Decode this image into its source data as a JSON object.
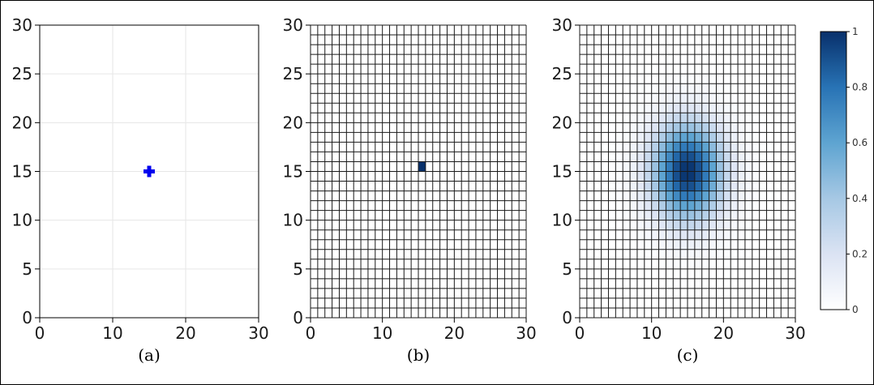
{
  "colors": {
    "marker": "#0000ee",
    "grid_light": "#e6e6e6",
    "grid_dark": "#1a1a1a",
    "cmap_low": "#ffffff",
    "cmap_high": "#08306b"
  },
  "chart_data": [
    {
      "type": "scatter",
      "caption": "(a)",
      "title": "",
      "xlabel": "",
      "ylabel": "",
      "xlim": [
        0,
        30
      ],
      "ylim": [
        0,
        30
      ],
      "x_ticks": [
        "0",
        "10",
        "20",
        "30"
      ],
      "y_ticks": [
        "0",
        "5",
        "10",
        "15",
        "20",
        "25",
        "30"
      ],
      "grid": true,
      "legend": "none",
      "points": [
        {
          "x": 15,
          "y": 15,
          "marker": "plus"
        }
      ]
    },
    {
      "type": "heatmap",
      "caption": "(b)",
      "title": "",
      "xlabel": "",
      "ylabel": "",
      "xlim": [
        0,
        30
      ],
      "ylim": [
        0,
        30
      ],
      "x_ticks": [
        "0",
        "10",
        "20",
        "30"
      ],
      "y_ticks": [
        "0",
        "5",
        "10",
        "15",
        "20",
        "25",
        "30"
      ],
      "grid_cells": [
        30,
        30
      ],
      "grid": true,
      "legend": "none",
      "active_cells": [
        {
          "x": 15,
          "y": 15,
          "value": 1
        }
      ]
    },
    {
      "type": "heatmap",
      "caption": "(c)",
      "title": "",
      "xlabel": "",
      "ylabel": "",
      "xlim": [
        0,
        30
      ],
      "ylim": [
        0,
        30
      ],
      "x_ticks": [
        "0",
        "10",
        "20",
        "30"
      ],
      "y_ticks": [
        "0",
        "5",
        "10",
        "15",
        "20",
        "25",
        "30"
      ],
      "grid_cells": [
        30,
        30
      ],
      "grid": true,
      "legend": "right",
      "distribution": {
        "kind": "gaussian",
        "center": [
          15,
          15
        ],
        "sigma": 3.5,
        "peak": 1
      },
      "colorbar": {
        "min": 0,
        "max": 1,
        "ticks": [
          "0",
          "0.2",
          "0.4",
          "0.6",
          "0.8",
          "1"
        ]
      }
    }
  ]
}
